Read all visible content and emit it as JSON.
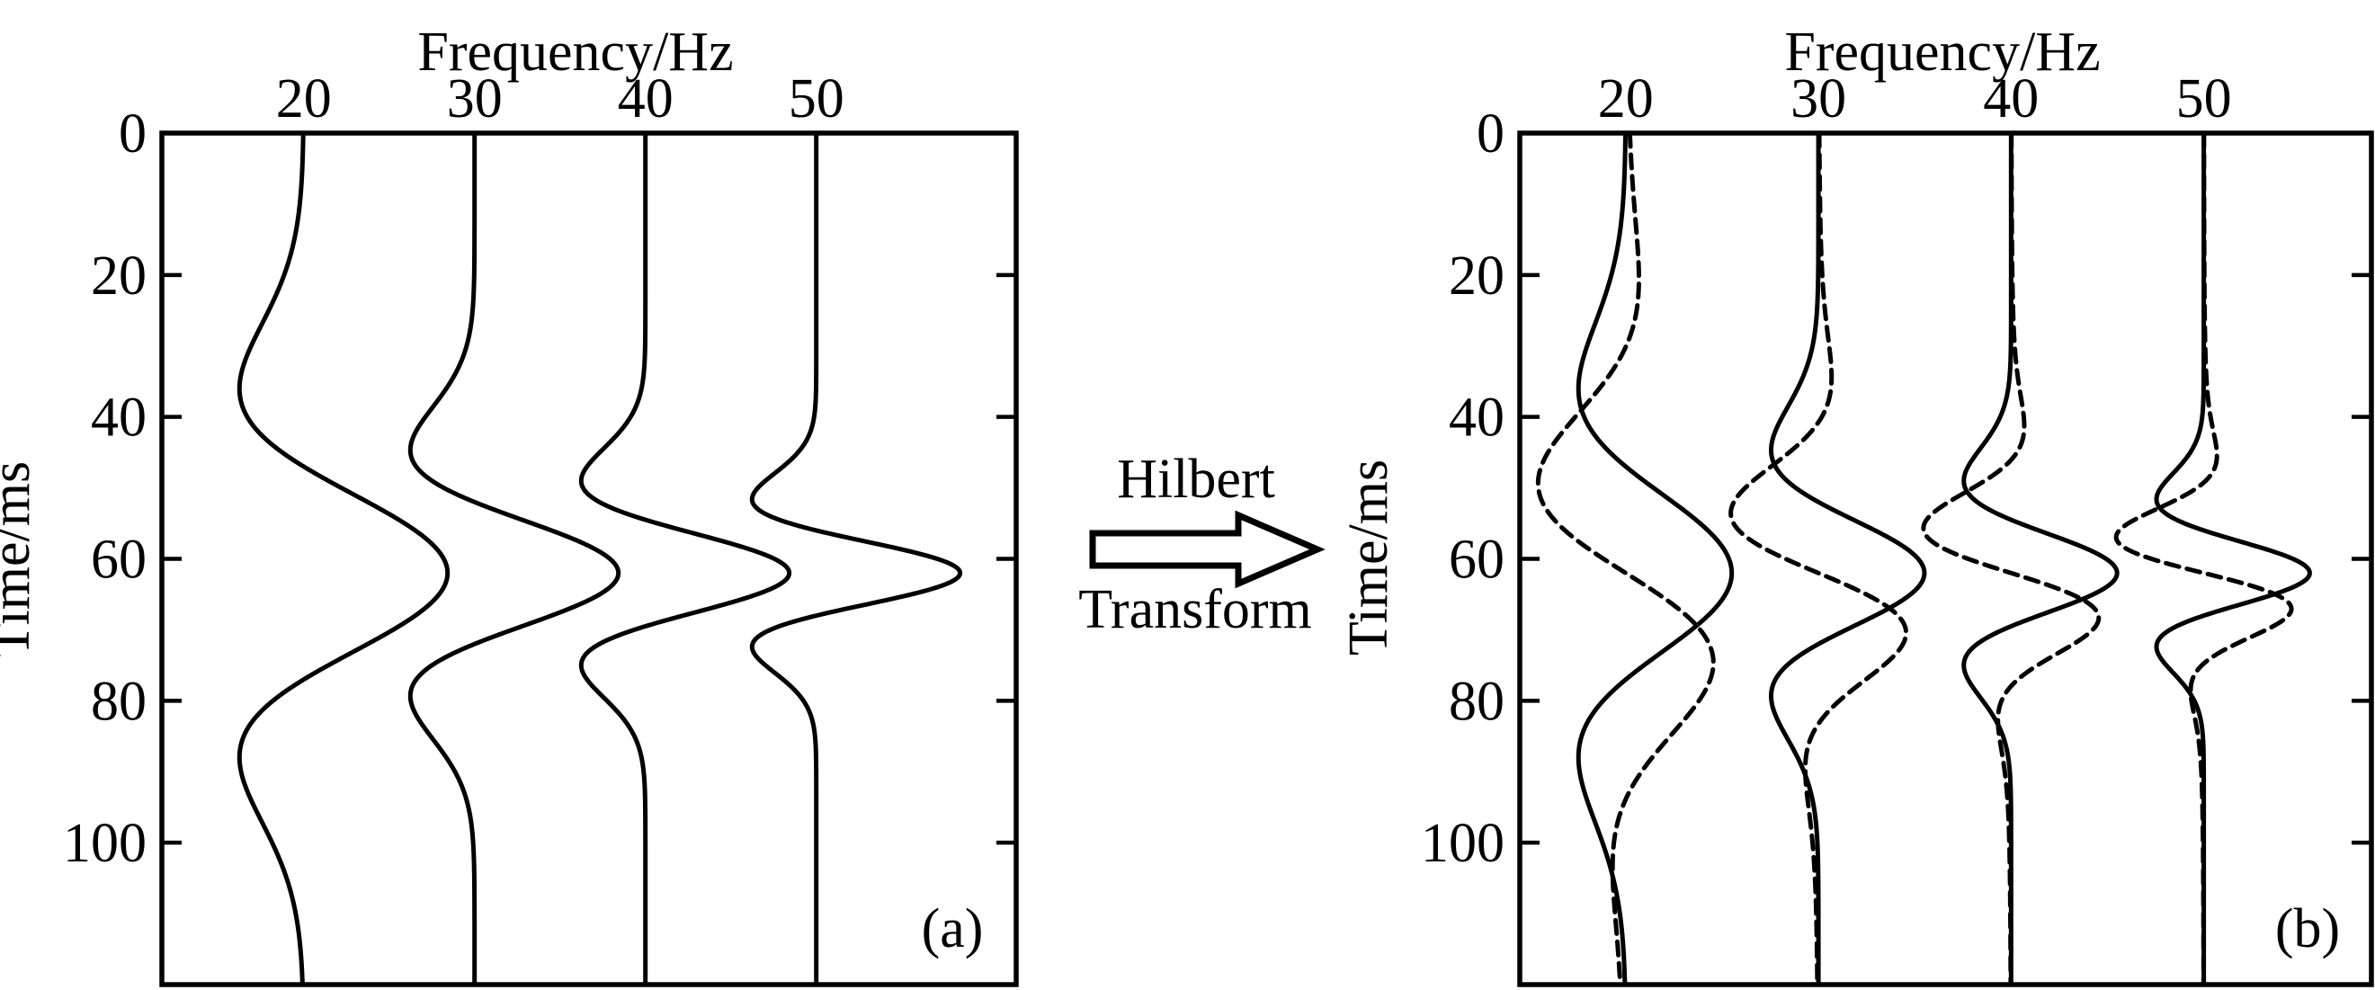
{
  "figure": {
    "background": "#ffffff",
    "ink": "#000000",
    "description": "Ricker wavelet traces at 20-50 Hz (a) and the same traces with their Hilbert transforms overlaid as dashed curves (b)"
  },
  "arrow": {
    "line1": "Hilbert",
    "line2": "Transform"
  },
  "panels": [
    {
      "label": "(a)",
      "xlabel": "Frequency/Hz",
      "ylabel": "Time/ms"
    },
    {
      "label": "(b)",
      "xlabel": "Frequency/Hz",
      "ylabel": "Time/ms"
    }
  ],
  "chart_data": [
    {
      "type": "line",
      "panel_label": "(a)",
      "title": "Frequency/Hz",
      "xlabel": "Frequency/Hz",
      "ylabel": "Time/ms",
      "x_axis": {
        "label": "Frequency/Hz",
        "ticks": [
          20,
          30,
          40,
          50
        ],
        "range": [
          11.7,
          61.7
        ],
        "side": "top",
        "unit": "Hz"
      },
      "y_axis": {
        "label": "Time/ms",
        "ticks": [
          0,
          20,
          40,
          60,
          80,
          100
        ],
        "range": [
          0,
          120
        ],
        "unit": "ms",
        "direction": "down"
      },
      "grid": false,
      "legend": "none",
      "wavelet": {
        "kind": "ricker",
        "center_time_ms": 62,
        "freq_scale": 0.75
      },
      "trace_amplitude_hz": 8.42,
      "series": [
        {
          "name": "Ricker wavelet 20 Hz",
          "frequency_hz": 20,
          "signal": "ricker",
          "style": "solid",
          "peak_time_ms": 62,
          "trough_times_ms": [
            36.0,
            88.0
          ],
          "trough_relative_amplitude": -0.446
        },
        {
          "name": "Ricker wavelet 30 Hz",
          "frequency_hz": 30,
          "signal": "ricker",
          "style": "solid",
          "peak_time_ms": 62,
          "trough_times_ms": [
            44.7,
            79.3
          ],
          "trough_relative_amplitude": -0.446
        },
        {
          "name": "Ricker wavelet 40 Hz",
          "frequency_hz": 40,
          "signal": "ricker",
          "style": "solid",
          "peak_time_ms": 62,
          "trough_times_ms": [
            49.0,
            75.0
          ],
          "trough_relative_amplitude": -0.446
        },
        {
          "name": "Ricker wavelet 50 Hz",
          "frequency_hz": 50,
          "signal": "ricker",
          "style": "solid",
          "peak_time_ms": 62,
          "trough_times_ms": [
            51.6,
            72.4
          ],
          "trough_relative_amplitude": -0.446
        }
      ]
    },
    {
      "type": "line",
      "panel_label": "(b)",
      "title": "Frequency/Hz",
      "xlabel": "Frequency/Hz",
      "ylabel": "Time/ms",
      "x_axis": {
        "label": "Frequency/Hz",
        "ticks": [
          20,
          30,
          40,
          50
        ],
        "range": [
          14.5,
          58.7
        ],
        "side": "top",
        "unit": "Hz"
      },
      "y_axis": {
        "label": "Time/ms",
        "ticks": [
          0,
          20,
          40,
          60,
          80,
          100
        ],
        "range": [
          0,
          120
        ],
        "unit": "ms",
        "direction": "down"
      },
      "grid": false,
      "legend": "none",
      "wavelet": {
        "kind": "ricker_and_hilbert",
        "center_time_ms": 62,
        "freq_scale": 0.75,
        "hilbert_peak_ratio": 0.827
      },
      "trace_amplitude_hz": 5.5,
      "series": [
        {
          "name": "Ricker wavelet 20 Hz",
          "frequency_hz": 20,
          "signal": "ricker",
          "style": "solid",
          "peak_time_ms": 62,
          "trough_times_ms": [
            36.0,
            88.0
          ]
        },
        {
          "name": "Ricker wavelet 30 Hz",
          "frequency_hz": 30,
          "signal": "ricker",
          "style": "solid",
          "peak_time_ms": 62,
          "trough_times_ms": [
            44.7,
            79.3
          ]
        },
        {
          "name": "Ricker wavelet 40 Hz",
          "frequency_hz": 40,
          "signal": "ricker",
          "style": "solid",
          "peak_time_ms": 62,
          "trough_times_ms": [
            49.0,
            75.0
          ]
        },
        {
          "name": "Ricker wavelet 50 Hz",
          "frequency_hz": 50,
          "signal": "ricker",
          "style": "solid",
          "peak_time_ms": 62,
          "trough_times_ms": [
            51.6,
            72.4
          ]
        },
        {
          "name": "Hilbert transform 20 Hz",
          "frequency_hz": 20,
          "signal": "hilbert",
          "style": "dashed",
          "zero_crossing_ms": 62,
          "negative_lobe_ms": 49.1,
          "positive_lobe_ms": 74.9
        },
        {
          "name": "Hilbert transform 30 Hz",
          "frequency_hz": 30,
          "signal": "hilbert",
          "style": "dashed",
          "zero_crossing_ms": 62,
          "negative_lobe_ms": 53.4,
          "positive_lobe_ms": 70.6
        },
        {
          "name": "Hilbert transform 40 Hz",
          "frequency_hz": 40,
          "signal": "hilbert",
          "style": "dashed",
          "zero_crossing_ms": 62,
          "negative_lobe_ms": 55.6,
          "positive_lobe_ms": 68.4
        },
        {
          "name": "Hilbert transform 50 Hz",
          "frequency_hz": 50,
          "signal": "hilbert",
          "style": "dashed",
          "zero_crossing_ms": 62,
          "negative_lobe_ms": 56.9,
          "positive_lobe_ms": 67.1
        }
      ]
    }
  ]
}
